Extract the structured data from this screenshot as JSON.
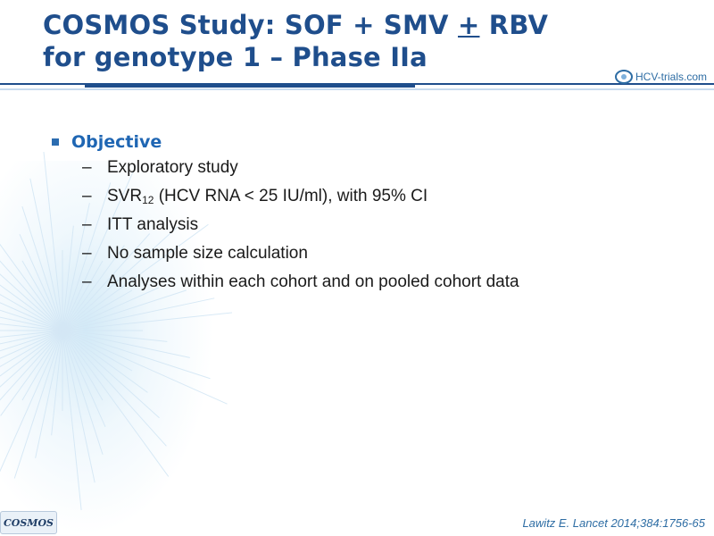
{
  "title": {
    "line1_prefix": "COSMOS Study: SOF + SMV ",
    "line1_underlined": "+",
    "line1_suffix": " RBV",
    "line2": "for genotype 1 – Phase IIa"
  },
  "logo": {
    "text": "HCV-trials.com"
  },
  "objective": {
    "label": "Objective",
    "items": [
      {
        "text": "Exploratory study"
      },
      {
        "prefix": "SVR",
        "subscript": "12",
        "suffix": " (HCV RNA < 25 IU/ml), with 95% CI"
      },
      {
        "text": "ITT analysis"
      },
      {
        "text": "No sample size calculation"
      },
      {
        "text": "Analyses within each cohort and on pooled cohort data"
      }
    ]
  },
  "footer": {
    "tag": "COSMOS",
    "citation": "Lawitz  E. Lancet 2014;384:1756-65"
  },
  "colors": {
    "title": "#1f4e8c",
    "accent": "#1f66b3",
    "text": "#1a1a1a"
  }
}
